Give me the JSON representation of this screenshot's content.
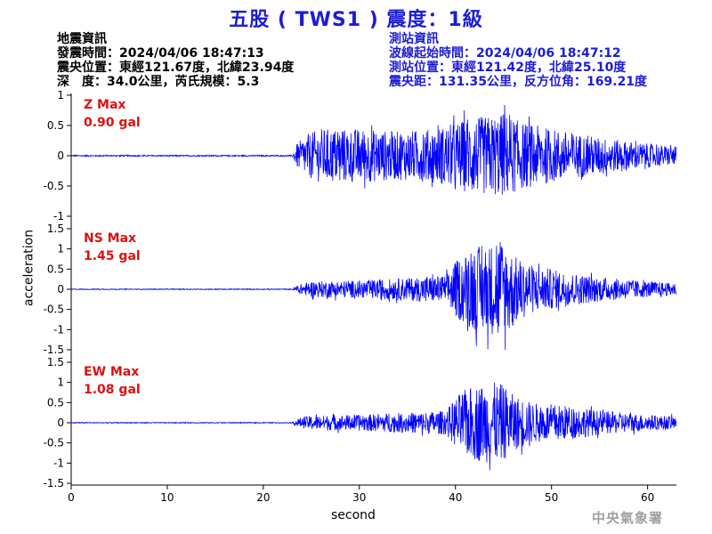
{
  "title": "五股 ( TWS1 ) 震度：1級",
  "quake_info": {
    "heading": "地震資訊",
    "time": "發震時間：2024/04/06 18:47:13",
    "location": "震央位置：東經121.67度，北緯23.94度",
    "depth": "深　度：34.0公里，芮氏規模：5.3"
  },
  "station_info": {
    "heading": "測站資訊",
    "start_time": "波線起始時間：2024/04/06 18:47:12",
    "location": "測站位置：東經121.42度，北緯25.10度",
    "distance": "震央距：131.35公里，反方位角：169.21度"
  },
  "credit": "中央氣象署",
  "colors": {
    "title": "#1c1cd6",
    "trace": "#0000ff",
    "max_label": "#e01010",
    "station_info": "#1c1cd6"
  },
  "chart_data": {
    "type": "line",
    "xlabel": "second",
    "ylabel": "acceleration",
    "xlim": [
      0,
      63
    ],
    "xticks": [
      "0",
      "10",
      "20",
      "30",
      "40",
      "50",
      "60"
    ],
    "panels": [
      {
        "name": "Z",
        "max_label": "Z Max",
        "max_value": "0.90 gal",
        "ylim": [
          -1,
          1
        ],
        "yticks": [
          "1",
          "0.5",
          "0",
          "-0.5",
          "-1"
        ],
        "envelope": [
          [
            0,
            0.01
          ],
          [
            23,
            0.01
          ],
          [
            23.5,
            0.2
          ],
          [
            24.5,
            0.35
          ],
          [
            26,
            0.45
          ],
          [
            30,
            0.45
          ],
          [
            34,
            0.4
          ],
          [
            38,
            0.45
          ],
          [
            41,
            0.6
          ],
          [
            43,
            0.65
          ],
          [
            45,
            0.7
          ],
          [
            47,
            0.55
          ],
          [
            50,
            0.45
          ],
          [
            55,
            0.3
          ],
          [
            60,
            0.2
          ],
          [
            63,
            0.15
          ]
        ]
      },
      {
        "name": "NS",
        "max_label": "NS Max",
        "max_value": "1.45 gal",
        "ylim": [
          -1.5,
          1.5
        ],
        "yticks": [
          "1.5",
          "1",
          "0.5",
          "0",
          "-0.5",
          "-1",
          "-1.5"
        ],
        "envelope": [
          [
            0,
            0.01
          ],
          [
            23,
            0.01
          ],
          [
            23.5,
            0.1
          ],
          [
            25,
            0.2
          ],
          [
            30,
            0.22
          ],
          [
            35,
            0.28
          ],
          [
            39,
            0.35
          ],
          [
            40,
            0.7
          ],
          [
            42,
            1.05
          ],
          [
            44,
            1.15
          ],
          [
            45,
            1.25
          ],
          [
            46,
            0.85
          ],
          [
            48,
            0.6
          ],
          [
            51,
            0.45
          ],
          [
            55,
            0.3
          ],
          [
            60,
            0.2
          ],
          [
            63,
            0.15
          ]
        ]
      },
      {
        "name": "EW",
        "max_label": "EW Max",
        "max_value": "1.08 gal",
        "ylim": [
          -1.5,
          1.5
        ],
        "yticks": [
          "1.5",
          "1",
          "0.5",
          "0",
          "-0.5",
          "-1",
          "-1.5"
        ],
        "envelope": [
          [
            0,
            0.01
          ],
          [
            23,
            0.01
          ],
          [
            23.5,
            0.1
          ],
          [
            25,
            0.18
          ],
          [
            30,
            0.2
          ],
          [
            35,
            0.25
          ],
          [
            39,
            0.3
          ],
          [
            40.5,
            0.75
          ],
          [
            42,
            0.95
          ],
          [
            44,
            1.0
          ],
          [
            45,
            0.95
          ],
          [
            46,
            0.7
          ],
          [
            48,
            0.5
          ],
          [
            51,
            0.45
          ],
          [
            55,
            0.3
          ],
          [
            60,
            0.2
          ],
          [
            63,
            0.15
          ]
        ]
      }
    ]
  }
}
